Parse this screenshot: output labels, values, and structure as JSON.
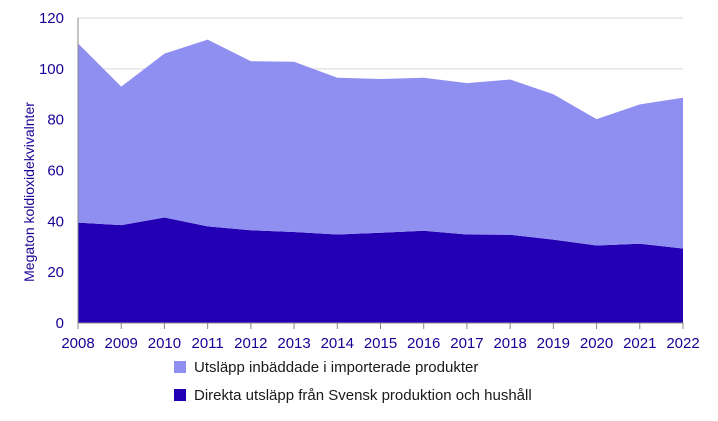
{
  "chart_data": {
    "type": "area",
    "stacked": true,
    "x": [
      "2008",
      "2009",
      "2010",
      "2011",
      "2012",
      "2013",
      "2014",
      "2015",
      "2016",
      "2017",
      "2018",
      "2019",
      "2020",
      "2021",
      "2022"
    ],
    "series": [
      {
        "name": "Direkta utsläpp från Svensk produktion och hushåll",
        "color": "#2400b4",
        "values": [
          39.5,
          38.5,
          41.5,
          38,
          36.5,
          35.8,
          34.8,
          35.5,
          36.3,
          34.8,
          34.7,
          32.8,
          30.5,
          31.2,
          29.3
        ]
      },
      {
        "name": "Utsläpp inbäddade i importerade produkter",
        "color": "#8f8ff2",
        "values": [
          70.5,
          54.5,
          64.5,
          73.5,
          66.5,
          67,
          61.7,
          60.5,
          60.2,
          59.6,
          61.1,
          57.2,
          49.7,
          54.8,
          59.3
        ]
      }
    ],
    "ylabel": "Megaton koldioxidekvivalnter",
    "xlabel": "",
    "ylim": [
      0,
      120
    ],
    "yticks": [
      0,
      20,
      40,
      60,
      80,
      100,
      120
    ],
    "grid": true,
    "legend_position": "bottom"
  }
}
